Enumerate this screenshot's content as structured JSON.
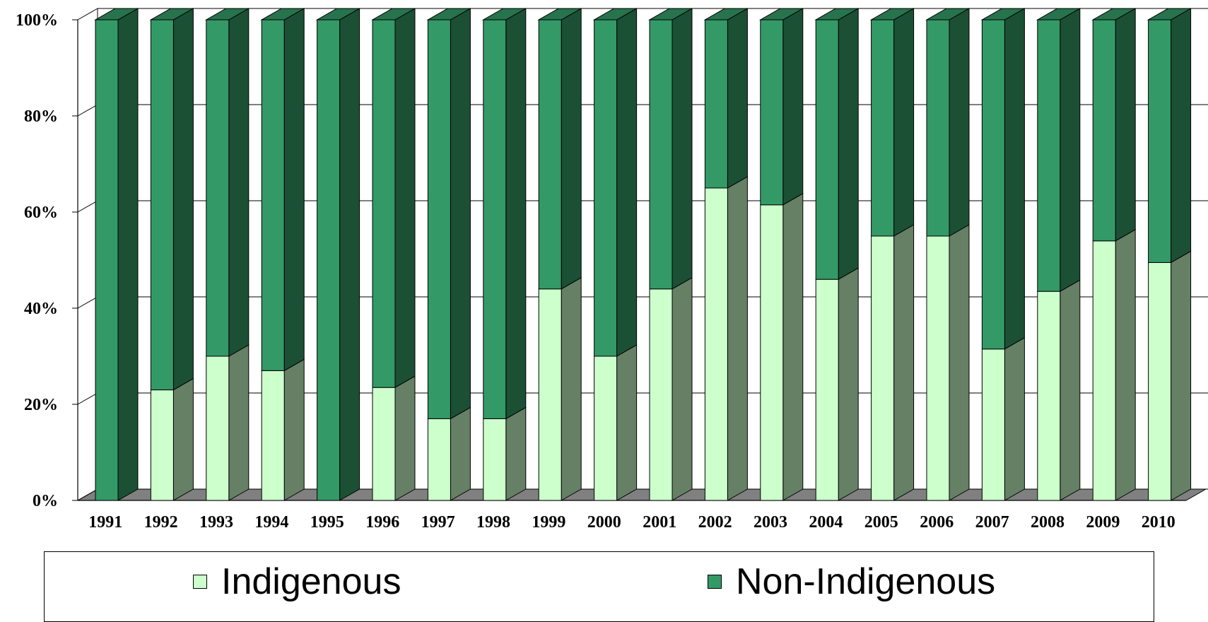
{
  "chart_data": {
    "type": "bar",
    "stacked": true,
    "percent_stacked": true,
    "three_d": true,
    "categories": [
      "1991",
      "1992",
      "1993",
      "1994",
      "1995",
      "1996",
      "1997",
      "1998",
      "1999",
      "2000",
      "2001",
      "2002",
      "2003",
      "2004",
      "2005",
      "2006",
      "2007",
      "2008",
      "2009",
      "2010"
    ],
    "series": [
      {
        "name": "Indigenous",
        "values": [
          0,
          23,
          30,
          27,
          0,
          23.5,
          17,
          17,
          44,
          30,
          44,
          65,
          61.5,
          46,
          55,
          55,
          31.5,
          43.5,
          54,
          49.5
        ],
        "color": "#ccffcc"
      },
      {
        "name": "Non-Indigenous",
        "values": [
          100,
          77,
          70,
          73,
          100,
          76.5,
          83,
          83,
          56,
          70,
          56,
          35,
          38.5,
          54,
          45,
          45,
          68.5,
          56.5,
          46,
          50.5
        ],
        "color": "#339966"
      }
    ],
    "y_ticks": [
      "0%",
      "20%",
      "40%",
      "60%",
      "80%",
      "100%"
    ],
    "ylim": [
      0,
      100
    ],
    "grid": true,
    "legend_position": "bottom",
    "title": "",
    "xlabel": "",
    "ylabel": ""
  },
  "legend": {
    "items": [
      {
        "label": "Indigenous"
      },
      {
        "label": "Non-Indigenous"
      }
    ]
  }
}
